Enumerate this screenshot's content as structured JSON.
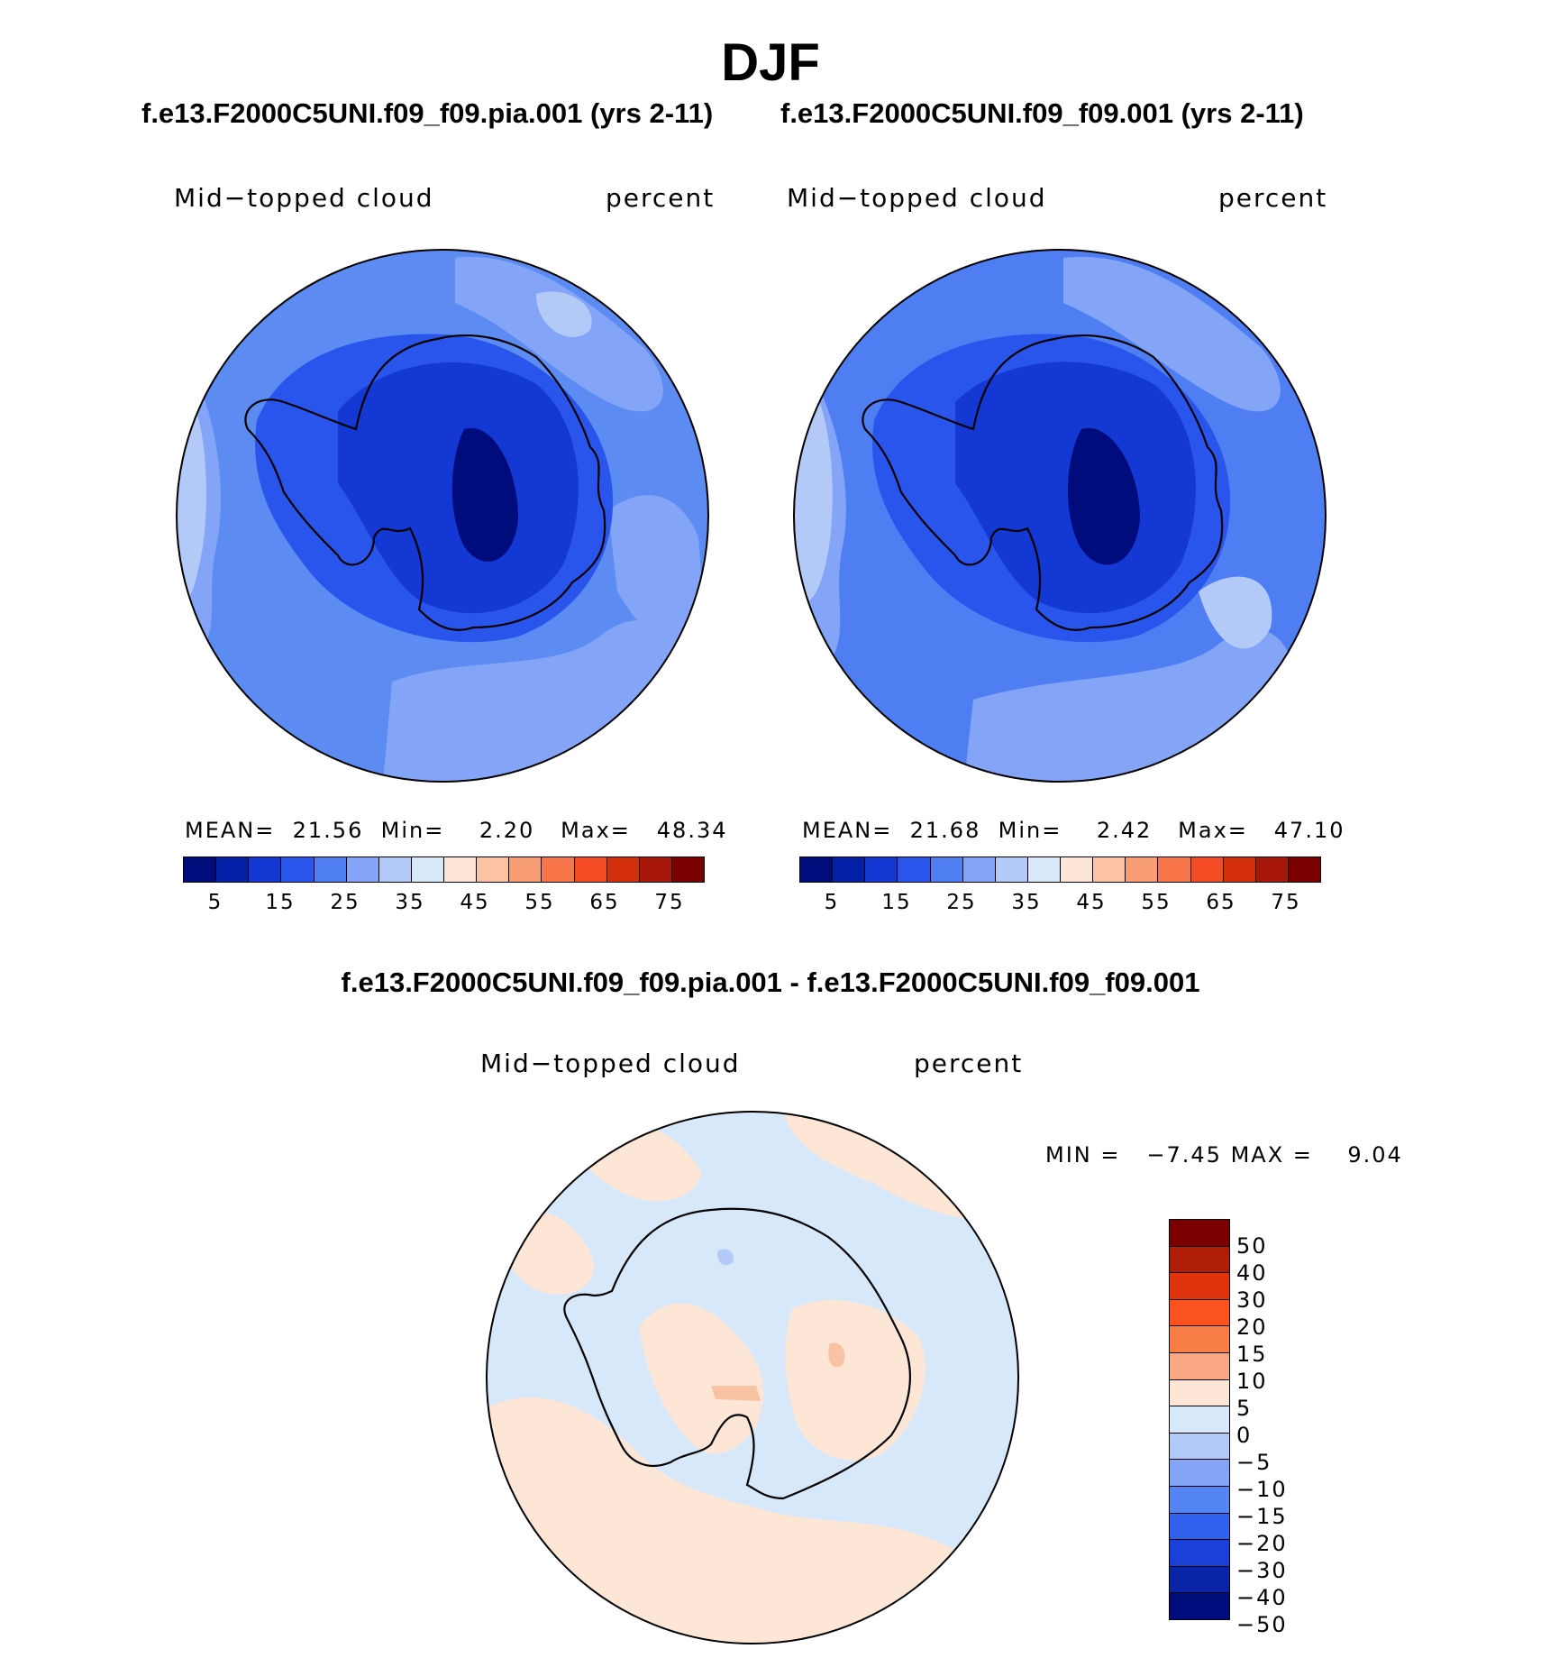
{
  "title": "DJF",
  "panels": [
    {
      "run_title": "f.e13.F2000C5UNI.f09_f09.pia.001 (yrs 2-11)",
      "variable": "Mid−topped cloud",
      "units": "percent",
      "stats": {
        "mean_label": "MEAN=",
        "mean": "21.56",
        "min_label": "Min=",
        "min": "2.20",
        "max_label": "Max=",
        "max": "48.34"
      }
    },
    {
      "run_title": "f.e13.F2000C5UNI.f09_f09.001 (yrs 2-11)",
      "variable": "Mid−topped cloud",
      "units": "percent",
      "stats": {
        "mean_label": "MEAN=",
        "mean": "21.68",
        "min_label": "Min=",
        "min": "2.42",
        "max_label": "Max=",
        "max": "47.10"
      }
    }
  ],
  "colorbar": {
    "colors": [
      "#000c7c",
      "#0320a6",
      "#1338d3",
      "#2a55ec",
      "#4f7ef3",
      "#84a5f7",
      "#b3caf9",
      "#d8e8fb",
      "#fde6d6",
      "#fcc2a4",
      "#f99d74",
      "#f87649",
      "#f54b22",
      "#d32f0a",
      "#a81808",
      "#7a0000"
    ],
    "tick_labels": [
      "5",
      "15",
      "25",
      "35",
      "45",
      "55",
      "65",
      "75"
    ]
  },
  "difference": {
    "title": "f.e13.F2000C5UNI.f09_f09.pia.001 - f.e13.F2000C5UNI.f09_f09.001",
    "variable": "Mid−topped cloud",
    "units": "percent",
    "stats": {
      "min_label": "MIN =",
      "min": "−7.45",
      "max_label": "MAX =",
      "max": "9.04"
    },
    "colorbar": {
      "colors_top_to_bottom": [
        "#7a0000",
        "#b01e07",
        "#e0340d",
        "#fb5320",
        "#f97e45",
        "#f9a883",
        "#fde6d6",
        "#d8e8fb",
        "#b3caf9",
        "#84a5f7",
        "#5585f3",
        "#3060ee",
        "#1a40d8",
        "#0a24a8",
        "#000c7c"
      ],
      "tick_labels": [
        "50",
        "40",
        "30",
        "20",
        "15",
        "10",
        "5",
        "0",
        "−5",
        "−10",
        "−15",
        "−20",
        "−30",
        "−40",
        "−50"
      ]
    }
  },
  "map_fill": {
    "panel1": {
      "ocean": "#5c8cf2",
      "ring": "#84a5f7",
      "continent": "#2a55ec",
      "interior": "#1338d3",
      "core": "#000c7c",
      "pale": "#b3caf9"
    },
    "panel2": {
      "ocean": "#4f7ef3",
      "ring": "#84a5f7",
      "continent": "#2a55ec",
      "interior": "#1338d3",
      "core": "#000c7c",
      "pale": "#b3caf9"
    },
    "diff": {
      "base": "#d8e8fb",
      "warm": "#fde6d6",
      "hot": "#f9c3a3",
      "cool": "#b3caf9"
    }
  }
}
